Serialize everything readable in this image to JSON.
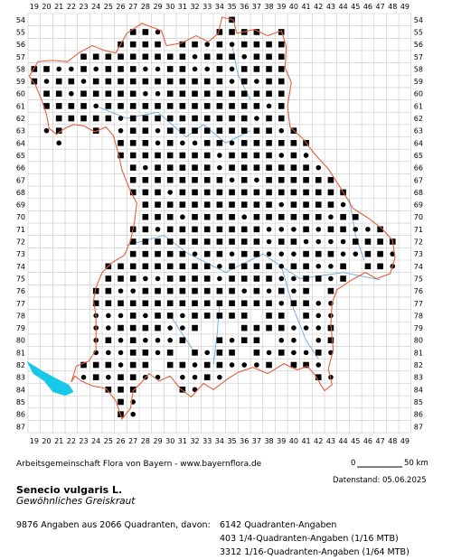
{
  "map": {
    "columns": [
      "19",
      "20",
      "21",
      "22",
      "23",
      "24",
      "25",
      "26",
      "27",
      "28",
      "29",
      "30",
      "31",
      "32",
      "33",
      "34",
      "35",
      "36",
      "37",
      "38",
      "39",
      "40",
      "41",
      "42",
      "43",
      "44",
      "45",
      "46",
      "47",
      "48",
      "49"
    ],
    "rows": [
      "54",
      "55",
      "56",
      "57",
      "58",
      "59",
      "60",
      "61",
      "62",
      "63",
      "64",
      "65",
      "66",
      "67",
      "68",
      "69",
      "70",
      "71",
      "72",
      "73",
      "74",
      "75",
      "76",
      "77",
      "78",
      "79",
      "80",
      "81",
      "82",
      "83",
      "84",
      "85",
      "86",
      "87"
    ],
    "colors": {
      "grid": "#c8c8c8",
      "border": "#e0603c",
      "river": "#6aa9e0",
      "lake": "#19c8e8",
      "dot": "#000000"
    },
    "legend_symbols": [
      "square = Quadranten-Angabe",
      "circle = 1/16- bzw. 1/64-Angabe"
    ]
  },
  "footer": {
    "credit": "Arbeitsgemeinschaft Flora von Bayern - www.bayernflora.de",
    "scale_zero": "0",
    "scale_end": "50 km",
    "date": "Datenstand: 05.06.2025",
    "scientific_name": "Senecio vulgaris L.",
    "common_name": "Gewöhnliches Greiskraut",
    "stats_main": "9876 Angaben aus 2066 Quadranten, davon:",
    "stats_lines": [
      "6142 Quadranten-Angaben",
      "403 1/4-Quadranten-Angaben (1/16 MTB)",
      "3312 1/16-Quadranten-Angaben (1/64 MTB)"
    ]
  }
}
